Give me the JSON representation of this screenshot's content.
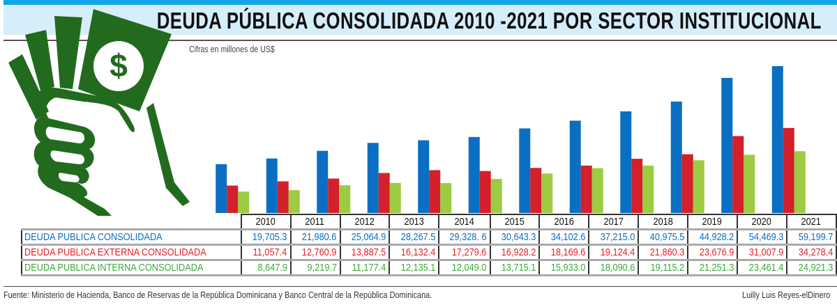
{
  "title": "DEUDA PÚBLICA CONSOLIDADA 2010 -2021 POR SECTOR INSTITUCIONAL",
  "units_note": "Cifras en millones de US$",
  "source": "Fuente: Ministerio de Hacienda, Banco de Reservas de la República Dominicana y Banco Central de la República Dominicana.",
  "credit": "Luilly Luis Reyes-elDinero",
  "colors": {
    "total": "#0a6fc2",
    "externa": "#d3202a",
    "interna": "#9dcb43",
    "total_text": "#0a6fc2",
    "externa_text": "#e3202a",
    "interna_text": "#3daa3a",
    "accent_bar": "#14a6e6",
    "title_band": "#d6eefa",
    "icon": "#226b1e"
  },
  "icon": "hand-holding-money-icon",
  "chart_data": {
    "type": "bar",
    "grouped": true,
    "categories": [
      "2010",
      "2011",
      "2012",
      "2013",
      "2014",
      "2015",
      "2016",
      "2017",
      "2018",
      "2019",
      "2020",
      "2021"
    ],
    "series": [
      {
        "name": "DEUDA PUBLICA CONSOLIDADA",
        "values": [
          19705.3,
          21980.6,
          25064.9,
          28267.5,
          29328.6,
          30643.3,
          34102.6,
          37215.0,
          40975.5,
          44928.2,
          54469.3,
          59199.7
        ],
        "labels": [
          "19,705.3",
          "21,980.6",
          "25,064.9",
          "28,267.5",
          "29,328. 6",
          "30,643.3",
          "34,102.6",
          "37,215.0",
          "40,975.5",
          "44,928.2",
          "54,469.3",
          "59,199.7"
        ]
      },
      {
        "name": "DEUDA PUBLICA EXTERNA CONSOLIDADA",
        "values": [
          11057.4,
          12760.9,
          13887.5,
          16132.4,
          17279.6,
          16928.2,
          18169.6,
          19124.4,
          21860.3,
          23676.9,
          31007.9,
          34278.4
        ],
        "labels": [
          "11,057.4",
          "12,760.9",
          "13,887.5",
          "16,132.4",
          "17,279.6",
          "16,928.2",
          "18,169.6",
          "19,124.4",
          "21,860.3",
          "23,676.9",
          "31,007.9",
          "34,278.4"
        ]
      },
      {
        "name": "DEUDA PUBLICA INTERNA CONSOLIDADA",
        "values": [
          8647.9,
          9219.7,
          11177.4,
          12135.1,
          12049.0,
          13715.1,
          15933.0,
          18090.6,
          19115.2,
          21251.3,
          23461.4,
          24921.3
        ],
        "labels": [
          "8,647.9",
          "9,219.7",
          "11,177.4",
          "12,135.1",
          "12,049.0",
          "13,715.1",
          "15,933.0",
          "18,090.6",
          "19,115.2",
          "21,251.3",
          "23,461.4",
          "24,921.3"
        ]
      }
    ],
    "ylim": [
      0,
      60000
    ],
    "grid": false,
    "axes_visible": false
  }
}
